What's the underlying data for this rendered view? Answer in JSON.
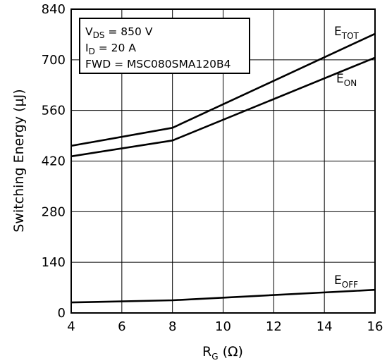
{
  "chart_data": {
    "type": "line",
    "xlabel_main": "R",
    "xlabel_sub": "G",
    "xlabel_unit": " (Ω)",
    "ylabel": "Switching Energy (µJ)",
    "xlim": [
      4,
      16
    ],
    "ylim": [
      0,
      840
    ],
    "xticks": [
      "4",
      "6",
      "8",
      "10",
      "12",
      "14",
      "16"
    ],
    "yticks": [
      "0",
      "140",
      "280",
      "420",
      "560",
      "700",
      "840"
    ],
    "grid": true,
    "annotation": [
      {
        "main": "V",
        "sub": "DS",
        "rest": " = 850 V"
      },
      {
        "main": "I",
        "sub": "D",
        "rest": " = 20 A"
      },
      {
        "main": "FWD = MSC080SMA120B4",
        "sub": "",
        "rest": ""
      }
    ],
    "series": [
      {
        "label_main": "E",
        "label_sub": "TOT",
        "x": [
          4,
          8,
          16
        ],
        "y": [
          462,
          512,
          772
        ]
      },
      {
        "label_main": "E",
        "label_sub": "ON",
        "x": [
          4,
          8,
          16
        ],
        "y": [
          433,
          477,
          706
        ]
      },
      {
        "label_main": "E",
        "label_sub": "OFF",
        "x": [
          4,
          8,
          16
        ],
        "y": [
          29,
          35,
          64
        ]
      }
    ]
  }
}
